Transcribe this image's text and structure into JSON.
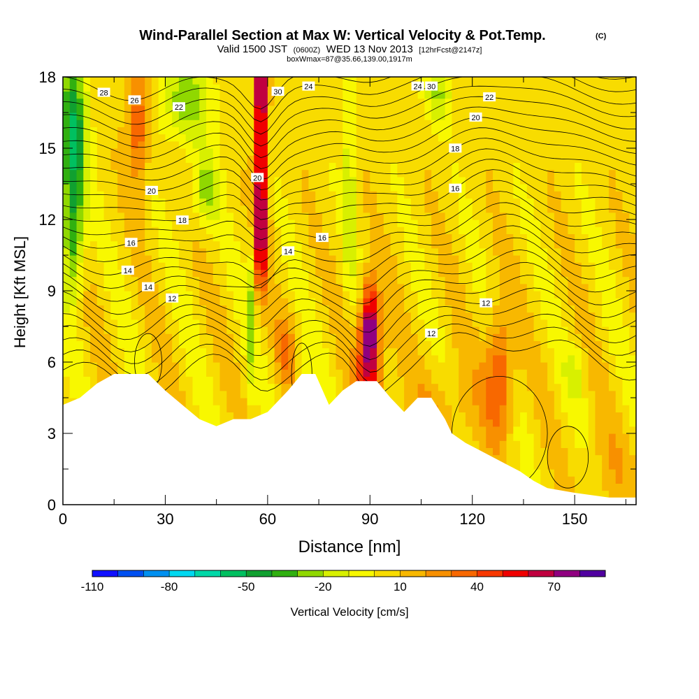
{
  "chart_data": {
    "type": "heatmap",
    "title": "Wind-Parallel Section at Max W: Vertical Velocity & Pot.Temp.",
    "title_mark": "(C)",
    "subtitle_parts": [
      "Valid 1500 JST",
      "(0600Z)",
      "WED 13 Nov 2013",
      "[12hrFcst@2147z]"
    ],
    "info_line": "boxWmax=87@35.66,139.00,1917m",
    "xlabel": "Distance [nm]",
    "ylabel": "Height [Kft MSL]",
    "xlim": [
      0,
      168
    ],
    "ylim": [
      0,
      18
    ],
    "xticks": [
      0,
      30,
      60,
      90,
      120,
      150
    ],
    "yticks": [
      0,
      3,
      6,
      9,
      12,
      15,
      18
    ],
    "colorbar": {
      "label": "Vertical Velocity [cm/s]",
      "ticks": [
        "-110",
        "-80",
        "-50",
        "-20",
        "10",
        "40",
        "70"
      ],
      "levels": [
        -110,
        -100,
        -90,
        -80,
        -70,
        -60,
        -50,
        -40,
        -30,
        -20,
        -10,
        0,
        10,
        20,
        30,
        40,
        50,
        60,
        70,
        80
      ],
      "colors": [
        "#1010ff",
        "#0050f0",
        "#0090f0",
        "#00d8f0",
        "#00d8a8",
        "#00c060",
        "#10a030",
        "#30b010",
        "#90d800",
        "#d8f000",
        "#f8f800",
        "#f8dc00",
        "#f8b800",
        "#f89000",
        "#f86800",
        "#f83800",
        "#f00000",
        "#c00040",
        "#900080",
        "#5000a0"
      ]
    },
    "theta_contour_labels": [
      "12",
      "14",
      "16",
      "18",
      "20",
      "22",
      "24",
      "26",
      "28",
      "30"
    ],
    "terrain_height_kft": [
      [
        0,
        4.2
      ],
      [
        5,
        4.5
      ],
      [
        10,
        5.1
      ],
      [
        15,
        5.5
      ],
      [
        25,
        5.5
      ],
      [
        30,
        4.8
      ],
      [
        35,
        4.2
      ],
      [
        40,
        3.6
      ],
      [
        45,
        3.3
      ],
      [
        50,
        3.6
      ],
      [
        55,
        3.6
      ],
      [
        60,
        3.9
      ],
      [
        62,
        4.2
      ],
      [
        66,
        4.8
      ],
      [
        70,
        5.5
      ],
      [
        74,
        5.5
      ],
      [
        78,
        4.2
      ],
      [
        82,
        4.8
      ],
      [
        86,
        5.2
      ],
      [
        92,
        5.2
      ],
      [
        96,
        4.5
      ],
      [
        100,
        3.9
      ],
      [
        104,
        4.5
      ],
      [
        108,
        4.5
      ],
      [
        112,
        3.6
      ],
      [
        114,
        3.0
      ],
      [
        118,
        2.6
      ],
      [
        122,
        2.3
      ],
      [
        126,
        2.0
      ],
      [
        130,
        1.7
      ],
      [
        134,
        1.4
      ],
      [
        138,
        1.0
      ],
      [
        142,
        0.7
      ],
      [
        146,
        0.6
      ],
      [
        150,
        0.5
      ],
      [
        160,
        0.3
      ],
      [
        168,
        0.3
      ]
    ],
    "updraft_maxima": [
      {
        "x": 58,
        "y": 17.5,
        "w": 80
      },
      {
        "x": 90,
        "y": 7.5,
        "w": 80
      },
      {
        "x": 128,
        "y": 5.5,
        "w": 40
      },
      {
        "x": 22,
        "y": 16.0,
        "w": 35
      }
    ]
  }
}
